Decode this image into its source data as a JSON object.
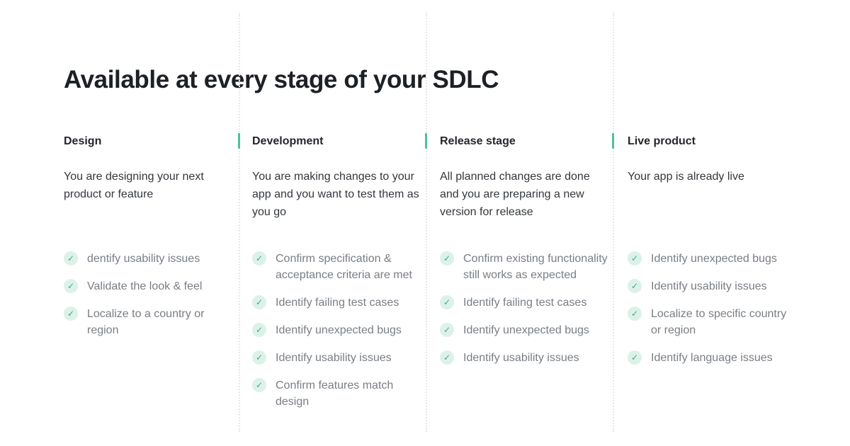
{
  "page": {
    "title": "Available at every stage of your SDLC"
  },
  "theme": {
    "accent": "#4cc0a0",
    "check-bg": "#dcf2e8",
    "check-fg": "#3fa98b",
    "divider": "#e7e7e7"
  },
  "icons": {
    "check": "✓"
  },
  "columns": [
    {
      "label": "Design",
      "description": "You are designing your next product or feature",
      "items": [
        "dentify usability issues",
        "Validate the look & feel",
        "Localize to a country or region"
      ]
    },
    {
      "label": "Development",
      "description": "You are making changes to your app and you want to test them as you go",
      "items": [
        "Confirm specification & acceptance criteria are met",
        "Identify failing test cases",
        "Identify unexpected bugs",
        "Identify usability issues",
        "Confirm features match design"
      ]
    },
    {
      "label": "Release stage",
      "description": "All planned changes are done and you are preparing a new version for release",
      "items": [
        "Confirm existing functionality still works as expected",
        "Identify failing test cases",
        "Identify unexpected bugs",
        "Identify usability issues"
      ]
    },
    {
      "label": "Live product",
      "description": "Your app is already live",
      "items": [
        "Identify unexpected bugs",
        "Identify usability issues",
        "Localize to specific country or region",
        "Identify language issues"
      ]
    }
  ]
}
